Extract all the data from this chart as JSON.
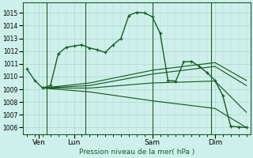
{
  "background_color": "#cef0ea",
  "grid_color": "#a8d8d0",
  "line_color": "#1a5c28",
  "title": "Pression niveau de la mer( hPa )",
  "ylabel_ticks": [
    1006,
    1007,
    1008,
    1009,
    1010,
    1011,
    1012,
    1013,
    1014,
    1015
  ],
  "ylim": [
    1005.5,
    1015.8
  ],
  "xlim": [
    -0.5,
    28.5
  ],
  "xtick_positions": [
    1.5,
    6,
    16,
    24
  ],
  "xtick_labels": [
    "Ven",
    "Lun",
    "Sam",
    "Dim"
  ],
  "vlines": [
    2.5,
    7.5,
    16,
    23.5
  ],
  "series1_x": [
    0,
    1,
    2,
    3,
    4,
    5,
    6,
    7,
    8,
    9,
    10,
    11,
    12,
    13,
    14,
    15,
    16,
    17,
    18,
    19,
    20,
    21,
    22,
    23,
    24,
    25,
    26,
    27,
    28
  ],
  "series1_y": [
    1010.6,
    1009.7,
    1009.1,
    1009.3,
    1011.8,
    1012.3,
    1012.4,
    1012.5,
    1012.25,
    1012.1,
    1011.9,
    1012.5,
    1013.0,
    1014.8,
    1015.05,
    1015.0,
    1014.7,
    1013.4,
    1009.7,
    1009.65,
    1011.15,
    1011.2,
    1010.8,
    1010.3,
    1009.7,
    1008.5,
    1006.1,
    1006.05,
    1006.0
  ],
  "series2_x": [
    2,
    8,
    16,
    24,
    28
  ],
  "series2_y": [
    1009.1,
    1009.5,
    1010.5,
    1011.1,
    1009.7
  ],
  "series3_x": [
    2,
    8,
    16,
    24,
    28
  ],
  "series3_y": [
    1009.1,
    1009.3,
    1010.2,
    1010.8,
    1009.3
  ],
  "series4_x": [
    2,
    8,
    16,
    24,
    28
  ],
  "series4_y": [
    1009.1,
    1009.1,
    1009.5,
    1009.65,
    1007.2
  ],
  "series5_x": [
    2,
    8,
    16,
    24,
    28
  ],
  "series5_y": [
    1009.1,
    1008.8,
    1008.1,
    1007.5,
    1006.0
  ]
}
